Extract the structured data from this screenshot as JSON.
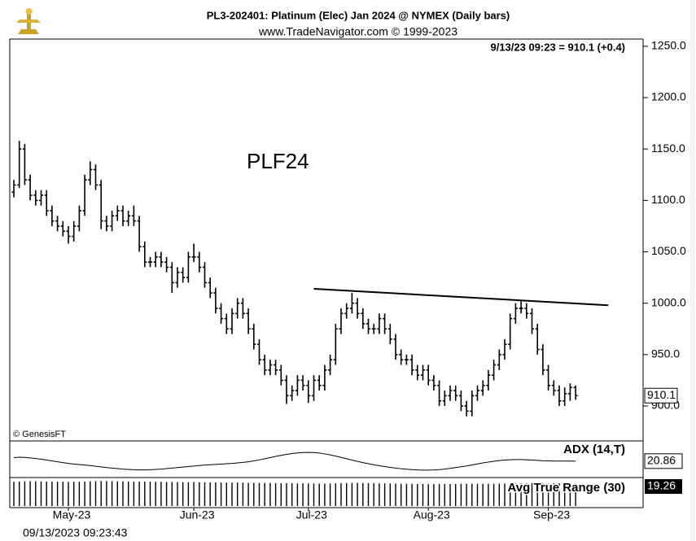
{
  "title": "PL3-202401:  Platinum (Elec) Jan 2024 @ NYMEX  (Daily bars)",
  "subtitle": "www.TradeNavigator.com © 1999-2023",
  "timestamp": "09/13/2023 09:23:43",
  "chart_data": [
    {
      "type": "ohlc",
      "last_quote": "9/13/23 09:23 = 910.1 (+0.4)",
      "annotation": "PLF24",
      "credit": "© GenesisFT",
      "color": "#000000",
      "categories": [
        null,
        null,
        null,
        null,
        null,
        null,
        null,
        null,
        null,
        null,
        "May-23",
        null,
        null,
        null,
        null,
        null,
        null,
        null,
        null,
        null,
        null,
        null,
        null,
        null,
        null,
        null,
        null,
        null,
        null,
        null,
        null,
        null,
        null,
        "Jun-23",
        null,
        null,
        null,
        null,
        null,
        null,
        null,
        null,
        null,
        null,
        null,
        null,
        null,
        null,
        null,
        null,
        null,
        null,
        null,
        null,
        "Jul-23",
        null,
        null,
        null,
        null,
        null,
        null,
        null,
        null,
        null,
        null,
        null,
        null,
        null,
        null,
        null,
        null,
        null,
        null,
        null,
        null,
        null,
        "Aug-23",
        null,
        null,
        null,
        null,
        null,
        null,
        null,
        null,
        null,
        null,
        null,
        null,
        null,
        null,
        null,
        null,
        null,
        null,
        null,
        null,
        null,
        "Sep-23",
        null,
        null,
        null,
        null,
        null
      ],
      "open": [
        1108,
        1115,
        1150,
        1120,
        1105,
        1100,
        1105,
        1090,
        1080,
        1075,
        1070,
        1065,
        1075,
        1090,
        1120,
        1130,
        1115,
        1080,
        1075,
        1085,
        1090,
        1080,
        1085,
        1080,
        1055,
        1040,
        1040,
        1045,
        1040,
        1035,
        1020,
        1030,
        1025,
        1045,
        1045,
        1035,
        1020,
        1010,
        995,
        985,
        975,
        990,
        1000,
        990,
        975,
        960,
        945,
        935,
        940,
        935,
        925,
        910,
        915,
        925,
        920,
        910,
        925,
        920,
        935,
        945,
        975,
        990,
        995,
        1000,
        990,
        980,
        975,
        975,
        985,
        975,
        965,
        950,
        945,
        945,
        935,
        930,
        935,
        925,
        920,
        905,
        910,
        915,
        910,
        900,
        895,
        910,
        915,
        920,
        930,
        940,
        950,
        960,
        985,
        995,
        995,
        990,
        975,
        955,
        935,
        920,
        915,
        905,
        912,
        918
      ],
      "high": [
        1120,
        1158,
        1155,
        1125,
        1110,
        1110,
        1110,
        1095,
        1085,
        1080,
        1075,
        1080,
        1095,
        1125,
        1138,
        1135,
        1120,
        1085,
        1090,
        1095,
        1095,
        1090,
        1095,
        1085,
        1060,
        1045,
        1050,
        1050,
        1045,
        1040,
        1035,
        1035,
        1050,
        1058,
        1050,
        1040,
        1025,
        1015,
        1000,
        990,
        995,
        1005,
        1005,
        995,
        980,
        965,
        950,
        945,
        945,
        940,
        930,
        920,
        930,
        930,
        925,
        930,
        930,
        940,
        950,
        980,
        995,
        1000,
        1010,
        1005,
        995,
        985,
        980,
        990,
        990,
        980,
        970,
        955,
        950,
        950,
        940,
        940,
        940,
        930,
        925,
        915,
        920,
        920,
        915,
        905,
        915,
        920,
        925,
        935,
        945,
        955,
        965,
        990,
        1000,
        1002,
        1000,
        995,
        980,
        960,
        940,
        925,
        920,
        918,
        922,
        920
      ],
      "low": [
        1103,
        1112,
        1115,
        1100,
        1095,
        1095,
        1085,
        1075,
        1070,
        1065,
        1058,
        1060,
        1070,
        1085,
        1115,
        1110,
        1072,
        1070,
        1070,
        1080,
        1075,
        1075,
        1075,
        1050,
        1035,
        1035,
        1035,
        1035,
        1030,
        1010,
        1015,
        1020,
        1020,
        1040,
        1030,
        1015,
        1005,
        990,
        980,
        970,
        970,
        985,
        985,
        970,
        955,
        940,
        930,
        930,
        930,
        920,
        902,
        905,
        910,
        915,
        903,
        905,
        915,
        915,
        930,
        940,
        970,
        985,
        990,
        985,
        975,
        970,
        970,
        970,
        970,
        960,
        945,
        940,
        940,
        930,
        925,
        925,
        920,
        915,
        900,
        900,
        905,
        905,
        895,
        890,
        890,
        905,
        910,
        915,
        925,
        935,
        945,
        955,
        980,
        990,
        985,
        970,
        950,
        930,
        915,
        910,
        900,
        900,
        905,
        906
      ],
      "close": [
        1115,
        1150,
        1120,
        1105,
        1100,
        1105,
        1090,
        1080,
        1075,
        1070,
        1065,
        1075,
        1090,
        1120,
        1130,
        1115,
        1080,
        1075,
        1085,
        1090,
        1080,
        1085,
        1080,
        1055,
        1040,
        1040,
        1045,
        1040,
        1035,
        1020,
        1030,
        1025,
        1045,
        1045,
        1035,
        1020,
        1010,
        995,
        985,
        975,
        990,
        1000,
        990,
        975,
        960,
        945,
        935,
        940,
        935,
        925,
        910,
        915,
        925,
        920,
        910,
        925,
        920,
        935,
        945,
        975,
        990,
        995,
        1000,
        990,
        980,
        975,
        975,
        985,
        975,
        965,
        950,
        945,
        945,
        935,
        930,
        935,
        925,
        920,
        905,
        910,
        915,
        910,
        900,
        895,
        910,
        915,
        920,
        930,
        940,
        950,
        960,
        985,
        995,
        995,
        990,
        975,
        955,
        935,
        920,
        915,
        905,
        912,
        918,
        910.1
      ],
      "trendline": {
        "x": [
          55,
          109
        ],
        "values": [
          1014,
          998
        ]
      },
      "ylim": [
        866,
        1257
      ],
      "yticks": [
        {
          "value": 900,
          "label": "900.0"
        },
        {
          "value": 950,
          "label": "950.0"
        },
        {
          "value": 1000,
          "label": "1000.0"
        },
        {
          "value": 1050,
          "label": "1050.0"
        },
        {
          "value": 1100,
          "label": "1100.0"
        },
        {
          "value": 1150,
          "label": "1150.0"
        },
        {
          "value": 1200,
          "label": "1200.0"
        },
        {
          "value": 1250,
          "label": "1250.0"
        }
      ]
    },
    {
      "type": "line",
      "name": "ADX (14,T)",
      "color": "#000000",
      "values": [
        23.0,
        23.2,
        23.1,
        22.8,
        22.4,
        22.0,
        21.5,
        21.0,
        20.5,
        20.0,
        19.5,
        19.1,
        18.8,
        18.5,
        18.2,
        17.8,
        17.4,
        17.0,
        16.7,
        16.4,
        16.1,
        15.9,
        15.7,
        15.6,
        15.6,
        15.7,
        15.9,
        16.1,
        16.4,
        16.7,
        17.0,
        17.3,
        17.6,
        17.9,
        18.2,
        18.5,
        18.7,
        18.9,
        19.1,
        19.3,
        19.5,
        19.8,
        20.1,
        20.5,
        21.0,
        21.6,
        22.3,
        23.0,
        23.7,
        24.3,
        24.9,
        25.4,
        25.8,
        26.0,
        26.1,
        26.0,
        25.7,
        25.2,
        24.6,
        23.9,
        23.1,
        22.3,
        21.5,
        20.7,
        20.0,
        19.3,
        18.7,
        18.1,
        17.6,
        17.1,
        16.7,
        16.3,
        16.0,
        15.8,
        15.6,
        15.5,
        15.5,
        15.6,
        15.8,
        16.1,
        16.5,
        17.0,
        17.5,
        18.0,
        18.6,
        19.2,
        19.8,
        20.3,
        20.8,
        21.2,
        21.5,
        21.7,
        21.8,
        21.8,
        21.7,
        21.5,
        21.3,
        21.1,
        21.0,
        20.9,
        20.9,
        20.9,
        20.9,
        20.86
      ],
      "ylim": [
        12,
        32
      ]
    },
    {
      "type": "bar",
      "name": "Avg True Range (30)",
      "color": "#000000",
      "values": [
        20.8,
        20.9,
        21.2,
        21.3,
        21.2,
        21.1,
        21.0,
        21.0,
        20.9,
        20.8,
        20.7,
        20.7,
        20.8,
        21.0,
        21.2,
        21.3,
        21.4,
        21.4,
        21.3,
        21.2,
        21.1,
        21.0,
        20.9,
        20.9,
        21.0,
        20.9,
        20.8,
        20.7,
        20.6,
        20.6,
        20.5,
        20.4,
        20.4,
        20.5,
        20.4,
        20.3,
        20.2,
        20.2,
        20.1,
        20.0,
        20.0,
        20.1,
        20.0,
        19.9,
        19.9,
        19.8,
        19.8,
        19.7,
        19.6,
        19.6,
        19.5,
        19.5,
        19.4,
        19.4,
        19.3,
        19.3,
        19.2,
        19.2,
        19.3,
        19.5,
        19.6,
        19.7,
        19.8,
        19.8,
        19.7,
        19.6,
        19.5,
        19.4,
        19.4,
        19.3,
        19.2,
        19.1,
        19.0,
        19.0,
        18.9,
        18.9,
        18.8,
        18.8,
        18.9,
        18.9,
        18.9,
        18.9,
        19.0,
        19.0,
        19.1,
        19.0,
        19.0,
        19.0,
        19.1,
        19.2,
        19.3,
        19.5,
        19.6,
        19.6,
        19.5,
        19.5,
        19.5,
        19.6,
        19.5,
        19.4,
        19.4,
        19.3,
        19.3,
        19.26
      ],
      "ylim": [
        0,
        23
      ]
    }
  ]
}
